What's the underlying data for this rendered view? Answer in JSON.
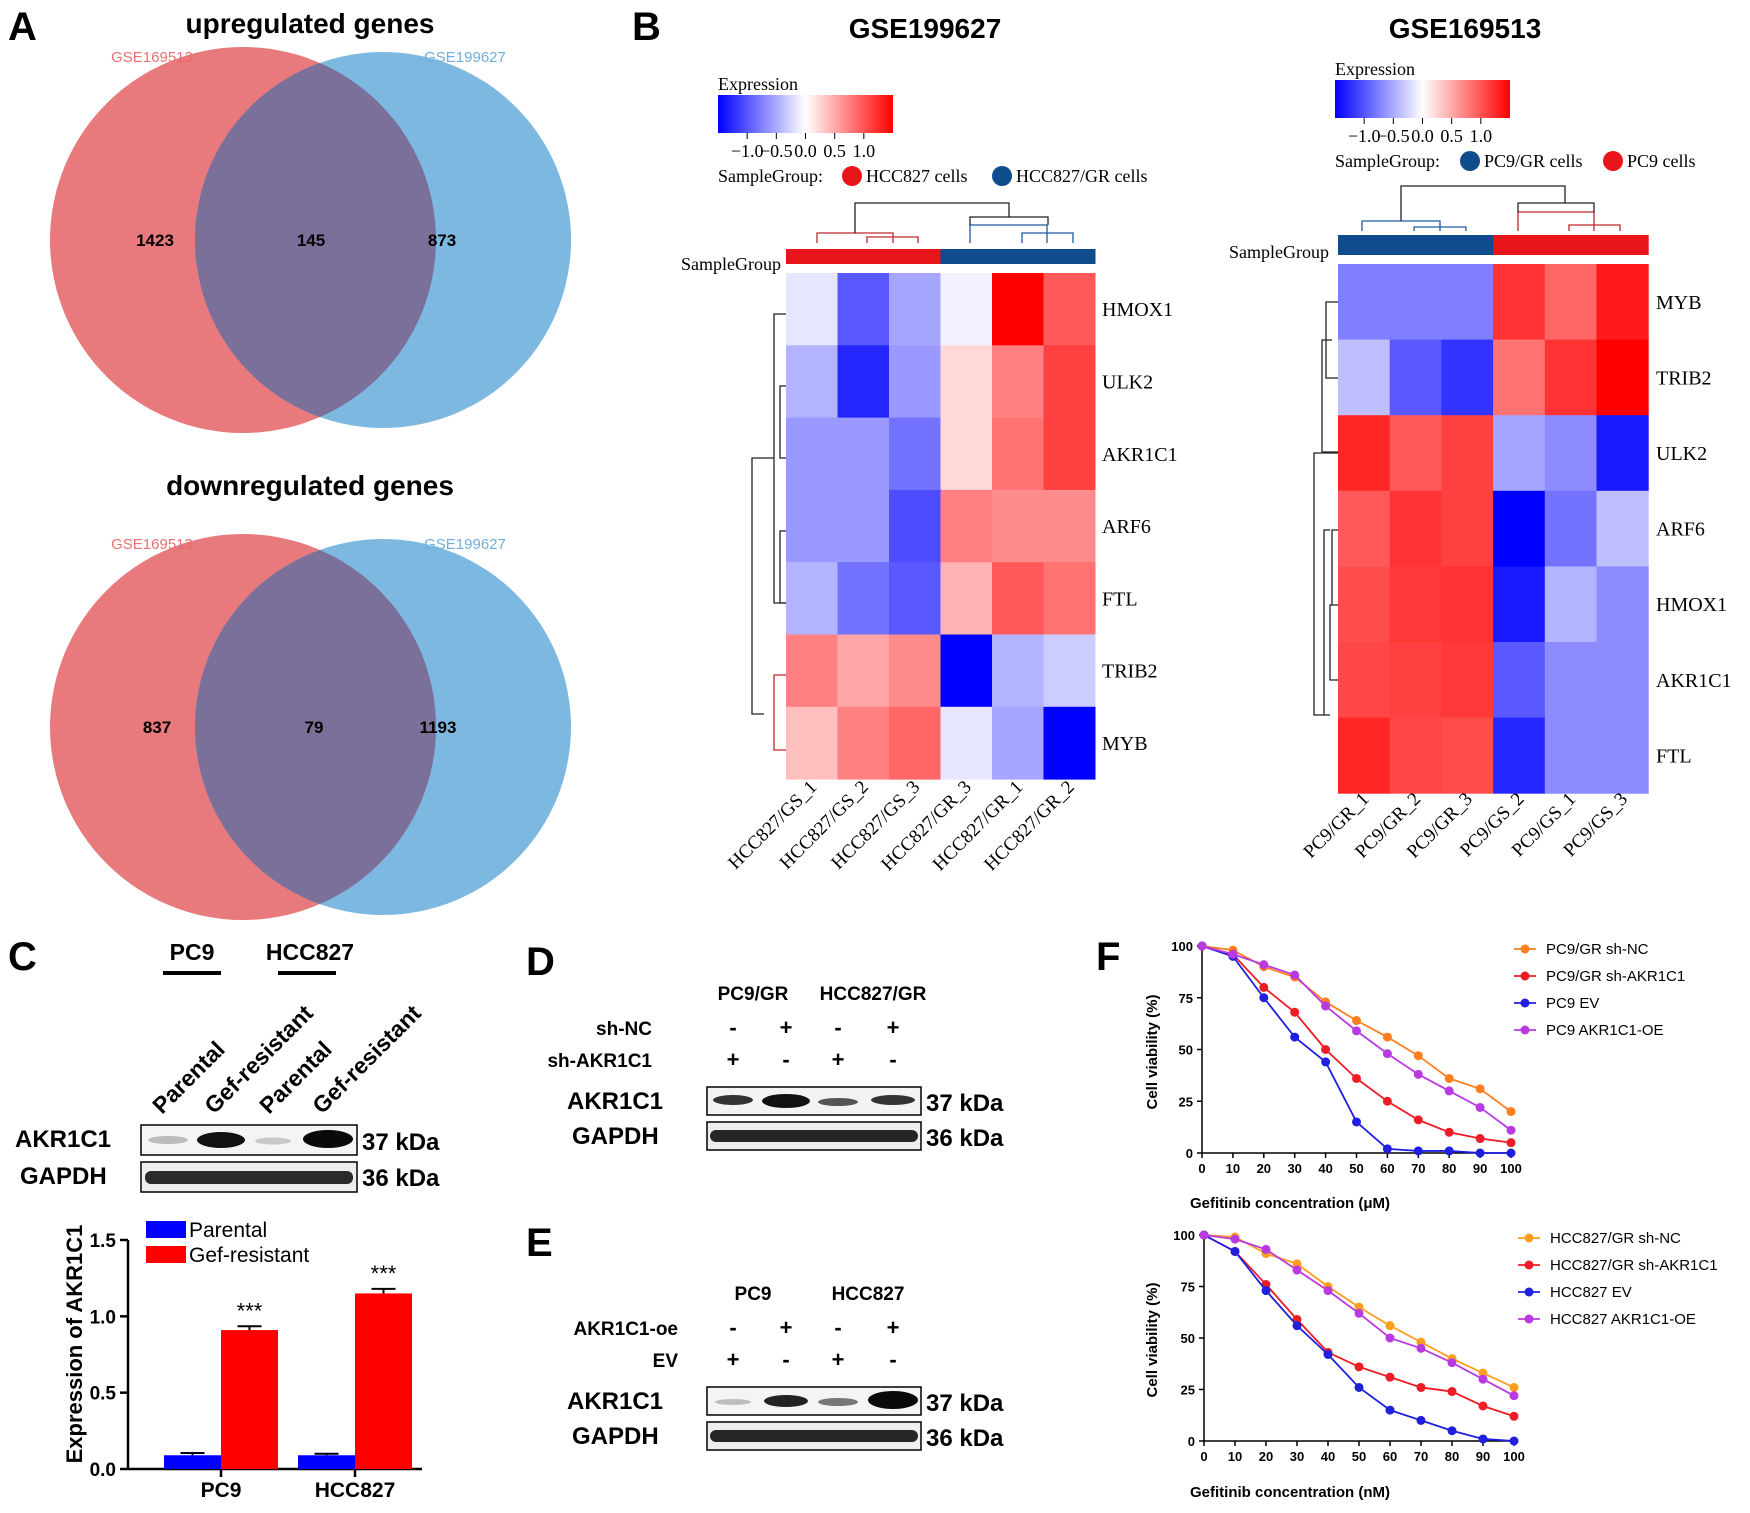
{
  "panels": {
    "A": {
      "label": "A",
      "venn": [
        {
          "title": "upregulated genes",
          "left_label": "GSE169513",
          "right_label": "GSE199627",
          "left_only": "1423",
          "overlap": "145",
          "right_only": "873"
        },
        {
          "title": "downregulated genes",
          "left_label": "GSE169513",
          "right_label": "GSE199627",
          "left_only": "837",
          "overlap": "79",
          "right_only": "1193"
        }
      ]
    },
    "B": {
      "label": "B",
      "heatmaps": [
        {
          "title": "GSE199627",
          "legend_title": "Expression",
          "ticks": [
            "−1.0",
            "−0.5",
            "0.0",
            "0.5",
            "1.0"
          ],
          "samplegroup_label": "SampleGroup:",
          "groups": [
            {
              "name": "HCC827 cells",
              "color": "#e8161b"
            },
            {
              "name": "HCC827/GR cells",
              "color": "#0f4c8c"
            }
          ],
          "row_annotation": "SampleGroup",
          "columns": [
            "HCC827/GS_1",
            "HCC827/GS_2",
            "HCC827/GS_3",
            "HCC827/GR_3",
            "HCC827/GR_1",
            "HCC827/GR_2"
          ],
          "column_groups": [
            0,
            0,
            0,
            1,
            1,
            1
          ],
          "rows": [
            "HMOX1",
            "ULK2",
            "AKR1C1",
            "ARF6",
            "FTL",
            "TRIB2",
            "MYB"
          ],
          "values": [
            [
              -0.1,
              -0.65,
              -0.35,
              -0.05,
              1.0,
              0.65
            ],
            [
              -0.3,
              -0.85,
              -0.4,
              0.15,
              0.5,
              0.75
            ],
            [
              -0.4,
              -0.4,
              -0.55,
              0.15,
              0.55,
              0.75
            ],
            [
              -0.4,
              -0.4,
              -0.7,
              0.5,
              0.45,
              0.45
            ],
            [
              -0.3,
              -0.55,
              -0.65,
              0.3,
              0.65,
              0.55
            ],
            [
              0.5,
              0.35,
              0.45,
              -1.0,
              -0.3,
              -0.2
            ],
            [
              0.25,
              0.5,
              0.6,
              -0.1,
              -0.35,
              -1.0
            ]
          ]
        },
        {
          "title": "GSE169513",
          "legend_title": "Expression",
          "ticks": [
            "−1.0",
            "−0.5",
            "0.0",
            "0.5",
            "1.0"
          ],
          "samplegroup_label": "SampleGroup:",
          "groups": [
            {
              "name": "PC9/GR cells",
              "color": "#0f4c8c"
            },
            {
              "name": "PC9 cells",
              "color": "#e8161b"
            }
          ],
          "row_annotation": "SampleGroup",
          "columns": [
            "PC9/GR_1",
            "PC9/GR_2",
            "PC9/GR_3",
            "PC9/GS_2",
            "PC9/GS_1",
            "PC9/GS_3"
          ],
          "column_groups": [
            0,
            0,
            0,
            1,
            1,
            1
          ],
          "rows": [
            "MYB",
            "TRIB2",
            "ULK2",
            "ARF6",
            "HMOX1",
            "AKR1C1",
            "FTL"
          ],
          "values": [
            [
              -0.5,
              -0.5,
              -0.5,
              0.8,
              0.6,
              0.9
            ],
            [
              -0.25,
              -0.65,
              -0.8,
              0.55,
              0.8,
              1.0
            ],
            [
              0.85,
              0.65,
              0.75,
              -0.35,
              -0.45,
              -0.9
            ],
            [
              0.65,
              0.8,
              0.75,
              -1.0,
              -0.55,
              -0.25
            ],
            [
              0.7,
              0.78,
              0.8,
              -0.9,
              -0.3,
              -0.45
            ],
            [
              0.72,
              0.75,
              0.78,
              -0.65,
              -0.45,
              -0.45
            ],
            [
              0.85,
              0.72,
              0.7,
              -0.85,
              -0.45,
              -0.45
            ]
          ]
        }
      ]
    },
    "C": {
      "label": "C",
      "groups": [
        "PC9",
        "HCC827"
      ],
      "lanes": [
        "Parental",
        "Gef-resistant",
        "Parental",
        "Gef-resistant"
      ],
      "blots": [
        {
          "name": "AKR1C1",
          "size": "37 kDa"
        },
        {
          "name": "GAPDH",
          "size": "36 kDa"
        }
      ],
      "chart_data": {
        "type": "bar",
        "categories": [
          "PC9",
          "HCC827"
        ],
        "series": [
          {
            "name": "Parental",
            "values": [
              0.09,
              0.09
            ],
            "errors": [
              0.015,
              0.01
            ],
            "color": "#0000ff"
          },
          {
            "name": "Gef-resistant",
            "values": [
              0.91,
              1.15
            ],
            "errors": [
              0.025,
              0.03
            ],
            "color": "#ff0000"
          }
        ],
        "significance": [
          "***",
          "***"
        ],
        "ylabel": "Expression of AKR1C1",
        "xlabel": "",
        "ylim": [
          0,
          1.5
        ],
        "yticks": [
          "0.0",
          "0.5",
          "1.0",
          "1.5"
        ]
      }
    },
    "D": {
      "label": "D",
      "groups": [
        "PC9/GR",
        "HCC827/GR"
      ],
      "conditions": [
        {
          "name": "sh-NC",
          "signs": [
            "-",
            "+",
            "-",
            "+"
          ]
        },
        {
          "name": "sh-AKR1C1",
          "signs": [
            "+",
            "-",
            "+",
            "-"
          ]
        }
      ],
      "blots": [
        {
          "name": "AKR1C1",
          "size": "37 kDa"
        },
        {
          "name": "GAPDH",
          "size": "36 kDa"
        }
      ]
    },
    "E": {
      "label": "E",
      "groups": [
        "PC9",
        "HCC827"
      ],
      "conditions": [
        {
          "name": "AKR1C1-oe",
          "signs": [
            "-",
            "+",
            "-",
            "+"
          ]
        },
        {
          "name": "EV",
          "signs": [
            "+",
            "-",
            "+",
            "-"
          ]
        }
      ],
      "blots": [
        {
          "name": "AKR1C1",
          "size": "37 kDa"
        },
        {
          "name": "GAPDH",
          "size": "36 kDa"
        }
      ]
    },
    "F": {
      "label": "F",
      "chart_data": [
        {
          "type": "line",
          "xlabel": "Gefitinib concentration (μM)",
          "ylabel": "Cell viability (%)",
          "x": [
            0,
            10,
            20,
            30,
            40,
            50,
            60,
            70,
            80,
            90,
            100
          ],
          "ylim": [
            0,
            100
          ],
          "yticks": [
            0,
            25,
            50,
            75,
            100
          ],
          "series": [
            {
              "name": "PC9/GR sh-NC",
              "color": "#ff7f1e",
              "values": [
                100,
                98,
                90,
                85,
                73,
                64,
                56,
                47,
                36,
                31,
                20
              ]
            },
            {
              "name": "PC9/GR sh-AKR1C1",
              "color": "#ee1c25",
              "values": [
                100,
                96,
                80,
                68,
                50,
                36,
                25,
                16,
                10,
                7,
                5
              ]
            },
            {
              "name": "PC9 EV",
              "color": "#1f1fe0",
              "values": [
                100,
                95,
                75,
                56,
                44,
                15,
                2,
                1,
                1,
                0,
                0
              ]
            },
            {
              "name": "PC9 AKR1C1-OE",
              "color": "#b83ae0",
              "values": [
                100,
                96,
                91,
                86,
                71,
                59,
                48,
                38,
                30,
                22,
                11
              ]
            }
          ]
        },
        {
          "type": "line",
          "xlabel": "Gefitinib concentration (nM)",
          "ylabel": "Cell viability (%)",
          "x": [
            0,
            10,
            20,
            30,
            40,
            50,
            60,
            70,
            80,
            90,
            100
          ],
          "ylim": [
            0,
            100
          ],
          "yticks": [
            0,
            25,
            50,
            75,
            100
          ],
          "series": [
            {
              "name": "HCC827/GR sh-NC",
              "color": "#ff9e1e",
              "values": [
                100,
                99,
                91,
                86,
                75,
                65,
                56,
                48,
                40,
                33,
                26
              ]
            },
            {
              "name": "HCC827/GR sh-AKR1C1",
              "color": "#ee1c25",
              "values": [
                100,
                92,
                76,
                59,
                43,
                36,
                31,
                26,
                24,
                17,
                12
              ]
            },
            {
              "name": "HCC827 EV",
              "color": "#1f1fe0",
              "values": [
                100,
                92,
                73,
                56,
                42,
                26,
                15,
                10,
                5,
                1,
                0
              ]
            },
            {
              "name": "HCC827 AKR1C1-OE",
              "color": "#b83ae0",
              "values": [
                100,
                98,
                93,
                83,
                73,
                62,
                50,
                45,
                38,
                30,
                22
              ]
            }
          ]
        }
      ]
    }
  }
}
